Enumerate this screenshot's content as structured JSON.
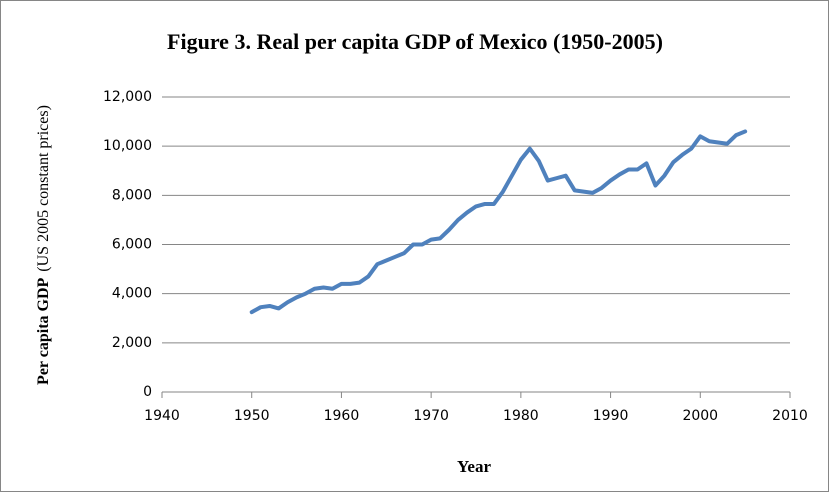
{
  "chart_data": {
    "type": "line",
    "title": "Figure 3.  Real per capita GDP of Mexico (1950-2005)",
    "ylabel": "Per capita GDP",
    "ylabel_note": "(US 2005 constant prices)",
    "xlabel": "Year",
    "x": [
      1950,
      1951,
      1952,
      1953,
      1954,
      1955,
      1956,
      1957,
      1958,
      1959,
      1960,
      1961,
      1962,
      1963,
      1964,
      1965,
      1966,
      1967,
      1968,
      1969,
      1970,
      1971,
      1972,
      1973,
      1974,
      1975,
      1976,
      1977,
      1978,
      1979,
      1980,
      1981,
      1982,
      1983,
      1984,
      1985,
      1986,
      1987,
      1988,
      1989,
      1990,
      1991,
      1992,
      1993,
      1994,
      1995,
      1996,
      1997,
      1998,
      1999,
      2000,
      2001,
      2002,
      2003,
      2004,
      2005
    ],
    "series": [
      {
        "color": "#4f81bd",
        "values": [
          3250,
          3450,
          3500,
          3400,
          3650,
          3850,
          4000,
          4200,
          4250,
          4200,
          4400,
          4400,
          4450,
          4700,
          5200,
          5350,
          5500,
          5650,
          6000,
          6000,
          6200,
          6250,
          6600,
          7000,
          7300,
          7550,
          7650,
          7650,
          8150,
          8800,
          9450,
          9900,
          9400,
          8600,
          8700,
          8800,
          8200,
          8150,
          8100,
          8300,
          8600,
          8850,
          9050,
          9050,
          9300,
          8400,
          8800,
          9350,
          9650,
          9900,
          10400,
          10200,
          10150,
          10100,
          10450,
          10600
        ]
      }
    ],
    "xlim": [
      1940,
      2010
    ],
    "xticks": [
      1940,
      1950,
      1960,
      1970,
      1980,
      1990,
      2000,
      2010
    ],
    "ylim": [
      0,
      12000
    ],
    "yticks": [
      0,
      {
        "value": 2000,
        "label": "2,000"
      },
      {
        "value": 4000,
        "label": "4,000"
      },
      {
        "value": 6000,
        "label": "6,000"
      },
      {
        "value": 8000,
        "label": "8,000"
      },
      {
        "value": 10000,
        "label": "10,000"
      },
      {
        "value": 12000,
        "label": "12,000"
      }
    ],
    "grid": true
  }
}
